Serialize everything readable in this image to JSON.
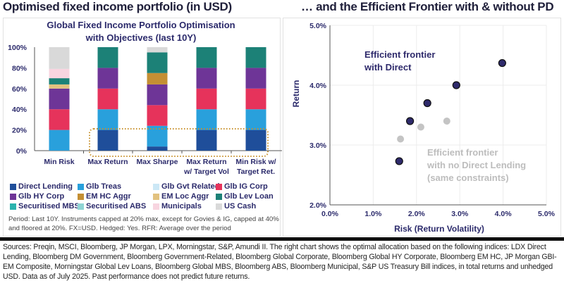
{
  "titles": {
    "left": "Optimised fixed income portfolio (in USD)",
    "right": "… and the Efficient Frontier with & without PD"
  },
  "note": "Period: Last 10Y. Instruments capped at 20% max, except for Govies & IG, capped at 40% and floored at 20%. FX=USD. Hedged: Yes. RFR: Average over the period",
  "sources": "Sources: Preqin, MSCI, Bloomberg, JP Morgan, LPX, Morningstar, S&P, Amundi II. The right chart shows the optimal allocation based on the following indices: LDX Direct Lending, Bloomberg DM Government, Bloomberg Government-Related, Bloomberg Global Corporate, Bloomberg Global HY Corporate, Bloomberg EM HC, JP Morgan GBI-EM Composite, Morningstar Global Lev Loans, Bloomberg Global MBS, Bloomberg ABS, Bloomberg Municipal, S&P US Treasury Bill indices, in total returns and unhedged USD. Data as of July 2025. Past performance does not predict future returns.",
  "chart_data": [
    {
      "type": "bar",
      "stacked": true,
      "title": "Global Fixed Income Portfolio Optimisation with Objectives (last 10Y)",
      "title_lines": [
        "Global Fixed Income Portfolio Optimisation",
        "with Objectives (last 10Y)"
      ],
      "categories": [
        "Min Risk",
        "Max Return",
        "Max Sharpe",
        "Max Return w/ Target Vol",
        "Min Risk w/ Target Ret."
      ],
      "category_lines": [
        [
          "Min Risk"
        ],
        [
          "Max Return"
        ],
        [
          "Max Sharpe"
        ],
        [
          "Max Return",
          "w/ Target Vol"
        ],
        [
          "Min Risk w/",
          "Target Ret."
        ]
      ],
      "ylim": [
        0,
        100
      ],
      "yticks": [
        "0%",
        "20%",
        "40%",
        "60%",
        "80%",
        "100%"
      ],
      "legend_position": "bottom",
      "highlight_box_color": "#c8912c",
      "series": [
        {
          "name": "Direct Lending",
          "color": "#1f4e9a",
          "values": [
            0,
            20,
            4,
            20,
            20
          ]
        },
        {
          "name": "Glb Treas",
          "color": "#29a0dc",
          "values": [
            20,
            20,
            20,
            20,
            20
          ]
        },
        {
          "name": "Glb Gvt Related",
          "color": "#cce8f6",
          "values": [
            0,
            0,
            0,
            0,
            0
          ]
        },
        {
          "name": "Glb IG Corp",
          "color": "#e6335b",
          "values": [
            20,
            20,
            20,
            20,
            20
          ]
        },
        {
          "name": "Glb HY Corp",
          "color": "#6e3597",
          "values": [
            20,
            20,
            20,
            20,
            20
          ]
        },
        {
          "name": "EM HC Aggr",
          "color": "#c48f34",
          "values": [
            0,
            0,
            11,
            0,
            0
          ]
        },
        {
          "name": "EM Loc Aggr",
          "color": "#e2c27f",
          "values": [
            4,
            0,
            0,
            0,
            0
          ]
        },
        {
          "name": "Glb Lev Loan",
          "color": "#1c8177",
          "values": [
            6,
            20,
            20,
            20,
            20
          ]
        },
        {
          "name": "Securitised MBS",
          "color": "#2bb3ae",
          "values": [
            0,
            0,
            0,
            0,
            0
          ]
        },
        {
          "name": "Securitised ABS",
          "color": "#8fd4d4",
          "values": [
            0,
            0,
            0,
            0,
            0
          ]
        },
        {
          "name": "Municipals",
          "color": "#f8d5e0",
          "values": [
            9,
            0,
            0,
            0,
            0
          ]
        },
        {
          "name": "US Cash",
          "color": "#d9d9d9",
          "values": [
            21,
            0,
            5,
            0,
            0
          ]
        }
      ]
    },
    {
      "type": "scatter",
      "xlabel": "Risk (Return Volatility)",
      "ylabel": "Return",
      "xlim": [
        0,
        5
      ],
      "ylim": [
        2,
        5
      ],
      "xticks": [
        "0.0%",
        "1.0%",
        "2.0%",
        "3.0%",
        "4.0%",
        "5.0%"
      ],
      "yticks": [
        "2.0%",
        "3.0%",
        "4.0%",
        "5.0%"
      ],
      "grid": true,
      "series": [
        {
          "name": "Efficient frontier with Direct",
          "label_lines": [
            "Efficient frontier",
            "with Direct"
          ],
          "color": "#2e2a6b",
          "points": [
            [
              1.6,
              2.73
            ],
            [
              1.85,
              3.4
            ],
            [
              2.25,
              3.7
            ],
            [
              2.92,
              4.0
            ],
            [
              3.98,
              4.37
            ]
          ]
        },
        {
          "name": "Efficient frontier with no Direct Lending (same constraints)",
          "label_lines": [
            "Efficient frontier",
            "with no Direct Lending",
            "(same constraints)"
          ],
          "color": "#c4c4c4",
          "points": [
            [
              1.63,
              3.1
            ],
            [
              2.1,
              3.3
            ],
            [
              2.7,
              3.4
            ]
          ]
        }
      ]
    }
  ]
}
